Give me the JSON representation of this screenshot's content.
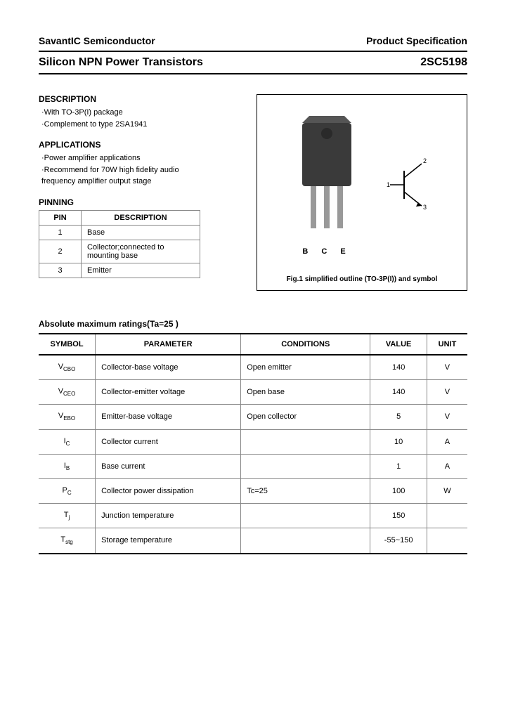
{
  "header": {
    "company": "SavantIC Semiconductor",
    "doc_type": "Product Specification"
  },
  "title": {
    "product_line": "Silicon NPN Power Transistors",
    "part_number": "2SC5198"
  },
  "description": {
    "heading": "DESCRIPTION",
    "lines": [
      "·With TO-3P(I) package",
      "·Complement to type 2SA1941"
    ]
  },
  "applications": {
    "heading": "APPLICATIONS",
    "lines": [
      "·Power amplifier applications",
      "·Recommend for 70W high fidelity audio",
      "  frequency amplifier output stage"
    ]
  },
  "pinning": {
    "heading": "PINNING",
    "columns": [
      "PIN",
      "DESCRIPTION"
    ],
    "rows": [
      {
        "pin": "1",
        "desc": "Base"
      },
      {
        "pin": "2",
        "desc": "Collector;connected to mounting base"
      },
      {
        "pin": "3",
        "desc": "Emitter"
      }
    ]
  },
  "figure": {
    "pin_labels": "B C E",
    "caption": "Fig.1 simplified outline (TO-3P(I)) and symbol",
    "package_color": "#3a3a3a",
    "lead_color": "#888888",
    "symbol_pins": {
      "1": "1",
      "2": "2",
      "3": "3"
    }
  },
  "ratings": {
    "heading": "Absolute maximum ratings(Ta=25   )",
    "columns": [
      "SYMBOL",
      "PARAMETER",
      "CONDITIONS",
      "VALUE",
      "UNIT"
    ],
    "rows": [
      {
        "symbol": "V",
        "sub": "CBO",
        "param": "Collector-base voltage",
        "cond": "Open emitter",
        "value": "140",
        "unit": "V"
      },
      {
        "symbol": "V",
        "sub": "CEO",
        "param": "Collector-emitter voltage",
        "cond": "Open base",
        "value": "140",
        "unit": "V"
      },
      {
        "symbol": "V",
        "sub": "EBO",
        "param": "Emitter-base voltage",
        "cond": "Open collector",
        "value": "5",
        "unit": "V"
      },
      {
        "symbol": "I",
        "sub": "C",
        "param": "Collector current",
        "cond": "",
        "value": "10",
        "unit": "A"
      },
      {
        "symbol": "I",
        "sub": "B",
        "param": "Base current",
        "cond": "",
        "value": "1",
        "unit": "A"
      },
      {
        "symbol": "P",
        "sub": "C",
        "param": "Collector power dissipation",
        "cond": "Tc=25",
        "value": "100",
        "unit": "W"
      },
      {
        "symbol": "T",
        "sub": "j",
        "param": "Junction temperature",
        "cond": "",
        "value": "150",
        "unit": ""
      },
      {
        "symbol": "T",
        "sub": "stg",
        "param": "Storage temperature",
        "cond": "",
        "value": "-55~150",
        "unit": ""
      }
    ]
  }
}
